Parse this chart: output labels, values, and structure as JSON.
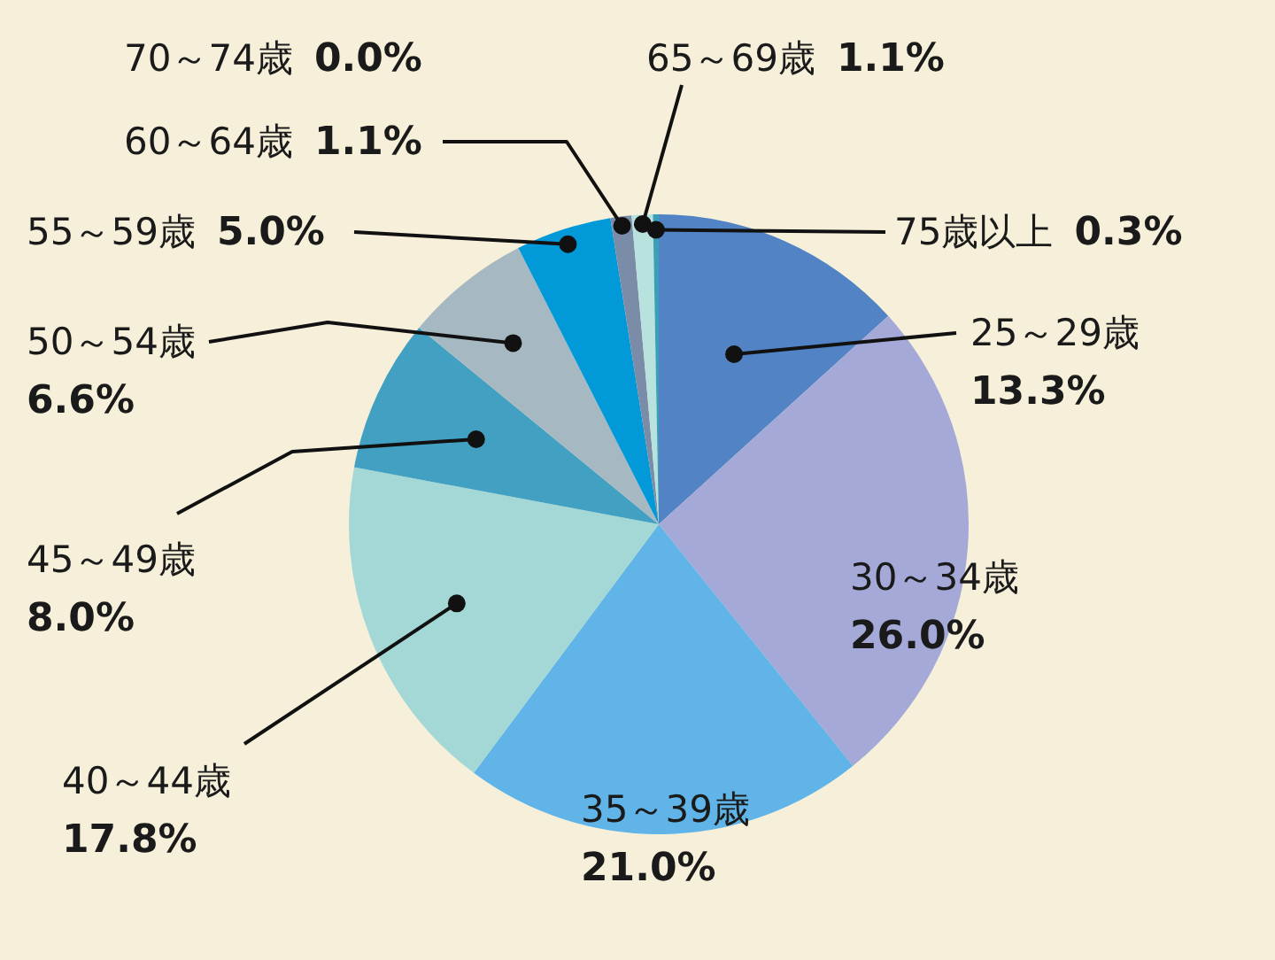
{
  "chart_data": {
    "type": "pie",
    "categories": [
      "25～29歳",
      "30～34歳",
      "35～39歳",
      "40～44歳",
      "45～49歳",
      "50～54歳",
      "55～59歳",
      "60～64歳",
      "65～69歳",
      "70～74歳",
      "75歳以上"
    ],
    "values": [
      13.3,
      26.0,
      21.0,
      17.8,
      8.0,
      6.6,
      5.0,
      1.1,
      1.1,
      0.0,
      0.3
    ],
    "value_labels": [
      "13.3%",
      "26.0%",
      "21.0%",
      "17.8%",
      "8.0%",
      "6.6%",
      "5.0%",
      "1.1%",
      "1.1%",
      "0.0%",
      "0.3%"
    ],
    "colors": [
      "#5283c5",
      "#a4a9d7",
      "#60b4e8",
      "#a4d8d6",
      "#42a0c2",
      "#a6b9c3",
      "#0299d9",
      "#7b8ca8",
      "#b8e2de",
      "#c8d0d8",
      "#3a9fb8"
    ],
    "legend": false
  }
}
